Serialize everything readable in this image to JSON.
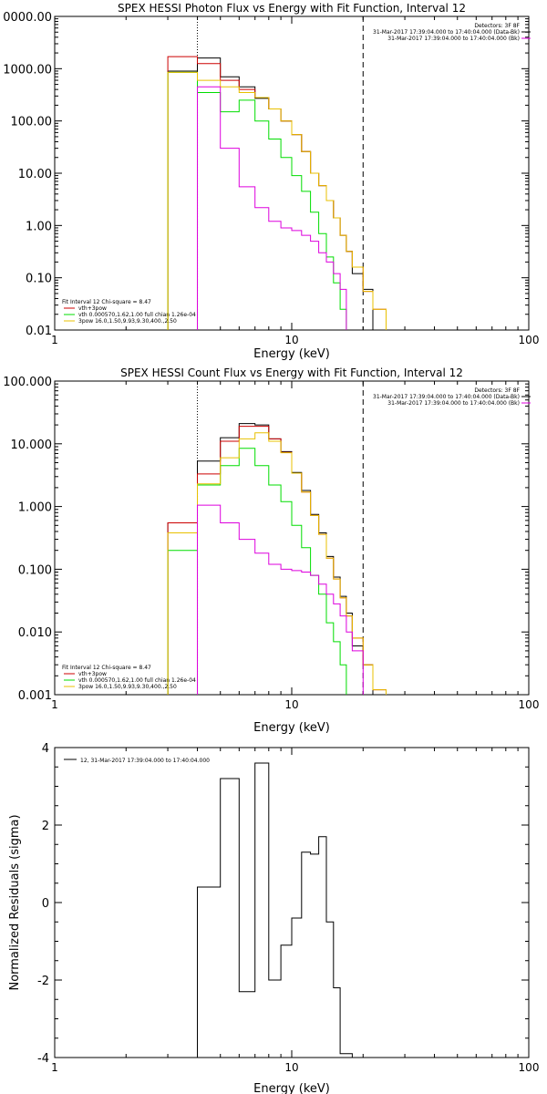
{
  "chart_data": [
    {
      "type": "line",
      "title": "SPEX HESSI Photon Flux vs Energy with Fit Function, Interval 12",
      "xlabel": "Energy (keV)",
      "ylabel": "",
      "xscale": "log",
      "yscale": "log",
      "xlim": [
        1,
        100
      ],
      "ylim": [
        0.01,
        10000
      ],
      "x_ticks": [
        "1",
        "10",
        "100"
      ],
      "y_ticks": [
        "0.01",
        "0.10",
        "1.00",
        "10.00",
        "100.00",
        "1000.00",
        "0000.00"
      ],
      "legend_top": [
        "Detectors: 3F 8F",
        "31-Mar-2017 17:39:04.000 to 17:40:04.000 (Data-Bk)",
        "31-Mar-2017 17:39:04.000 to 17:40:04.000 (Bk)"
      ],
      "legend_bottom": [
        "Fit Interval 12   Chi-square = 8.47",
        "vth+3pow",
        "vth 0.000570,1.62,1.00   full chian 1.26e-04",
        "3pow 16.0,1.50,9.93,9.30,400.,2.50"
      ],
      "vlines": [
        4,
        20
      ],
      "edges": [
        3,
        4,
        5,
        6,
        7,
        8,
        9,
        10,
        11,
        12,
        13,
        14,
        15,
        16,
        17,
        18,
        20,
        22,
        25
      ],
      "series": [
        {
          "name": "31-Mar-2017 17:39:04.000 to 17:40:04.000 (Data-Bk)",
          "color": "#000000",
          "values": [
            900,
            1600,
            700,
            450,
            270,
            170,
            100,
            55,
            26,
            10,
            5.8,
            3.0,
            1.4,
            0.65,
            0.32,
            0.12,
            0.06,
            null
          ]
        },
        {
          "name": "vth+3pow",
          "color": "#cc0000",
          "values": [
            1700,
            1250,
            600,
            400,
            280,
            170,
            100,
            55,
            26,
            10,
            5.8,
            3.0,
            1.4,
            0.65,
            0.32,
            0.16,
            0.055,
            0.025
          ]
        },
        {
          "name": "vth",
          "color": "#00dd00",
          "values": [
            850,
            350,
            150,
            250,
            100,
            45,
            20,
            9,
            4.5,
            1.8,
            0.7,
            0.25,
            0.08,
            0.025,
            null,
            null,
            null,
            null
          ]
        },
        {
          "name": "3pow",
          "color": "#e8c000",
          "values": [
            850,
            600,
            450,
            350,
            280,
            170,
            100,
            55,
            26,
            10,
            5.8,
            3.0,
            1.4,
            0.65,
            0.32,
            0.16,
            0.055,
            0.025
          ]
        },
        {
          "name": "",
          "color": "#dd00dd",
          "values": [
            null,
            450,
            30,
            5.5,
            2.2,
            1.2,
            0.9,
            0.8,
            0.65,
            0.5,
            0.3,
            0.2,
            0.12,
            0.06,
            null,
            null,
            null,
            null
          ]
        }
      ]
    },
    {
      "type": "line",
      "title": "SPEX HESSI Count Flux vs Energy with Fit Function, Interval 12",
      "xlabel": "Energy (keV)",
      "ylabel": "",
      "xscale": "log",
      "yscale": "log",
      "xlim": [
        1,
        100
      ],
      "ylim": [
        0.001,
        100
      ],
      "x_ticks": [
        "1",
        "10",
        "100"
      ],
      "y_ticks": [
        "0.001",
        "0.010",
        "0.100",
        "1.000",
        "10.000",
        "100.000"
      ],
      "legend_top": [
        "Detectors: 3F 8F",
        "31-Mar-2017 17:39:04.000 to 17:40:04.000 (Data-Bk)",
        "31-Mar-2017 17:39:04.000 to 17:40:04.000 (Bk)"
      ],
      "legend_bottom": [
        "Fit Interval 12   Chi-square = 8.47",
        "vth+3pow",
        "vth 0.000570,1.62,1.00   full chian 1.26e-04",
        "3pow 16.0,1.50,9.93,9.30,400.,2.50"
      ],
      "vlines": [
        4,
        20
      ],
      "edges": [
        3,
        4,
        5,
        6,
        7,
        8,
        9,
        10,
        11,
        12,
        13,
        14,
        15,
        16,
        17,
        18,
        20,
        22,
        25
      ],
      "series": [
        {
          "name": "31-Mar-2017 17:39:04.000 to 17:40:04.000 (Data-Bk)",
          "color": "#000000",
          "values": [
            0.55,
            5.3,
            12.5,
            21,
            20,
            12,
            7.5,
            3.5,
            1.8,
            0.75,
            0.38,
            0.16,
            0.075,
            0.037,
            0.02,
            0.006,
            0.003,
            null
          ]
        },
        {
          "name": "vth+3pow",
          "color": "#cc0000",
          "values": [
            0.55,
            3.3,
            11,
            19,
            19,
            12,
            7.3,
            3.4,
            1.7,
            0.72,
            0.36,
            0.15,
            0.07,
            0.035,
            0.018,
            0.008,
            0.003,
            0.0012
          ]
        },
        {
          "name": "vth",
          "color": "#00dd00",
          "values": [
            0.2,
            2.2,
            4.5,
            8.5,
            4.5,
            2.2,
            1.2,
            0.5,
            0.22,
            0.08,
            0.04,
            0.014,
            0.007,
            0.003,
            null,
            null,
            null,
            null
          ]
        },
        {
          "name": "3pow",
          "color": "#e8c000",
          "values": [
            0.38,
            2.3,
            6,
            12,
            15,
            11,
            7.2,
            3.4,
            1.7,
            0.72,
            0.36,
            0.15,
            0.07,
            0.035,
            0.018,
            0.008,
            0.003,
            0.0012
          ]
        },
        {
          "name": "",
          "color": "#dd00dd",
          "values": [
            null,
            1.05,
            0.55,
            0.3,
            0.18,
            0.12,
            0.1,
            0.095,
            0.09,
            0.08,
            0.058,
            0.04,
            0.028,
            0.018,
            0.01,
            0.005,
            null,
            null
          ]
        }
      ]
    },
    {
      "type": "line",
      "title": "",
      "xlabel": "Energy (keV)",
      "ylabel": "Normalized Residuals (sigma)",
      "xscale": "log",
      "yscale": "linear",
      "xlim": [
        1,
        100
      ],
      "ylim": [
        -4,
        4
      ],
      "x_ticks": [
        "1",
        "10",
        "100"
      ],
      "y_ticks": [
        "-4",
        "-2",
        "0",
        "2",
        "4"
      ],
      "legend_top": [
        "12, 31-Mar-2017 17:39:04.000 to 17:40:04.000"
      ],
      "edges": [
        4,
        5,
        6,
        7,
        8,
        9,
        10,
        11,
        12,
        13,
        14,
        15,
        16,
        18,
        20
      ],
      "series": [
        {
          "name": "12, 31-Mar-2017 17:39:04.000 to 17:40:04.000",
          "color": "#000000",
          "values": [
            0.4,
            3.2,
            -2.3,
            3.6,
            -2.0,
            -1.1,
            -0.4,
            1.3,
            1.25,
            1.7,
            -0.5,
            -2.2,
            -3.9,
            null
          ]
        }
      ]
    }
  ]
}
